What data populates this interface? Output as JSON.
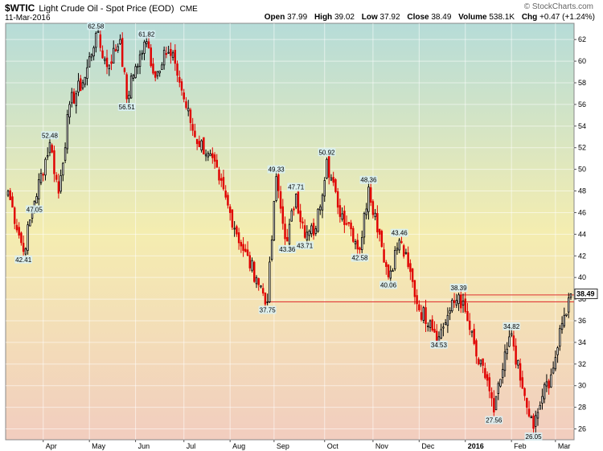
{
  "header": {
    "symbol": "$WTIC",
    "description": "Light Crude Oil - Spot Price (EOD)",
    "exchange": "CME",
    "date": "11-Mar-2016",
    "copyright": "© StockCharts.com",
    "open_label": "Open",
    "open": "37.99",
    "high_label": "High",
    "high": "39.02",
    "low_label": "Low",
    "low": "37.92",
    "close_label": "Close",
    "close": "38.49",
    "volume_label": "Volume",
    "volume": "538.1K",
    "chg_label": "Chg",
    "chg": "+0.47 (+1.24%)"
  },
  "colors": {
    "up": "#000000",
    "down": "#e00000",
    "line": "#e03030",
    "bg_top": "#b6dcd8",
    "bg_mid": "#f4edb0",
    "bg_bottom": "#f2cdbf"
  },
  "chart_data": {
    "type": "candlestick",
    "yticks": [
      26,
      28,
      30,
      32,
      34,
      36,
      38,
      40,
      42,
      44,
      46,
      48,
      50,
      52,
      54,
      56,
      58,
      60,
      62
    ],
    "ylim": [
      25,
      63.5
    ],
    "months": [
      "Apr",
      "May",
      "Jun",
      "Jul",
      "Aug",
      "Sep",
      "Oct",
      "Nov",
      "Dec",
      "2016",
      "Feb",
      "Mar"
    ],
    "month_index": [
      16,
      37,
      58,
      80,
      101,
      121,
      144,
      166,
      187,
      208,
      229,
      249
    ],
    "n_bars": 257,
    "anchors": [
      [
        0,
        48.0
      ],
      [
        7,
        42.41
      ],
      [
        12,
        47.05
      ],
      [
        19,
        52.48
      ],
      [
        23,
        47.8
      ],
      [
        28,
        56.0
      ],
      [
        35,
        58.5
      ],
      [
        40,
        62.58
      ],
      [
        45,
        59.5
      ],
      [
        51,
        62.0
      ],
      [
        54,
        56.51
      ],
      [
        58,
        59.5
      ],
      [
        63,
        61.82
      ],
      [
        67,
        58.5
      ],
      [
        71,
        61.0
      ],
      [
        76,
        59.8
      ],
      [
        80,
        56.5
      ],
      [
        85,
        53.0
      ],
      [
        91,
        51.5
      ],
      [
        96,
        49.0
      ],
      [
        101,
        46.0
      ],
      [
        107,
        42.5
      ],
      [
        113,
        40.0
      ],
      [
        118,
        37.75
      ],
      [
        122,
        49.33
      ],
      [
        125,
        45.0
      ],
      [
        127,
        43.36
      ],
      [
        131,
        47.71
      ],
      [
        135,
        43.71
      ],
      [
        140,
        44.5
      ],
      [
        145,
        50.92
      ],
      [
        150,
        46.5
      ],
      [
        155,
        45.0
      ],
      [
        160,
        42.58
      ],
      [
        164,
        48.36
      ],
      [
        169,
        44.0
      ],
      [
        173,
        40.06
      ],
      [
        178,
        43.46
      ],
      [
        182,
        41.0
      ],
      [
        187,
        37.0
      ],
      [
        192,
        36.0
      ],
      [
        196,
        34.53
      ],
      [
        200,
        36.5
      ],
      [
        205,
        38.39
      ],
      [
        209,
        36.0
      ],
      [
        214,
        32.0
      ],
      [
        218,
        30.5
      ],
      [
        221,
        27.56
      ],
      [
        225,
        31.5
      ],
      [
        229,
        34.82
      ],
      [
        233,
        30.5
      ],
      [
        236,
        28.0
      ],
      [
        239,
        26.05
      ],
      [
        243,
        29.0
      ],
      [
        247,
        31.0
      ],
      [
        250,
        33.5
      ],
      [
        253,
        36.5
      ],
      [
        256,
        38.49
      ]
    ],
    "annotations": [
      {
        "label": "62.58",
        "value": 62.58,
        "index": 40,
        "pos": "above"
      },
      {
        "label": "61.82",
        "value": 61.82,
        "index": 63,
        "pos": "above"
      },
      {
        "label": "52.48",
        "value": 52.48,
        "index": 19,
        "pos": "above"
      },
      {
        "label": "56.51",
        "value": 56.51,
        "index": 54,
        "pos": "below"
      },
      {
        "label": "47.05",
        "value": 47.05,
        "index": 12,
        "pos": "below"
      },
      {
        "label": "42.41",
        "value": 42.41,
        "index": 7,
        "pos": "below"
      },
      {
        "label": "49.33",
        "value": 49.33,
        "index": 122,
        "pos": "above"
      },
      {
        "label": "47.71",
        "value": 47.71,
        "index": 131,
        "pos": "above"
      },
      {
        "label": "43.36",
        "value": 43.36,
        "index": 127,
        "pos": "below"
      },
      {
        "label": "43.71",
        "value": 43.71,
        "index": 135,
        "pos": "below"
      },
      {
        "label": "37.75",
        "value": 37.75,
        "index": 118,
        "pos": "below"
      },
      {
        "label": "50.92",
        "value": 50.92,
        "index": 145,
        "pos": "above"
      },
      {
        "label": "48.36",
        "value": 48.36,
        "index": 164,
        "pos": "above"
      },
      {
        "label": "42.58",
        "value": 42.58,
        "index": 160,
        "pos": "below"
      },
      {
        "label": "43.46",
        "value": 43.46,
        "index": 178,
        "pos": "above"
      },
      {
        "label": "40.06",
        "value": 40.06,
        "index": 173,
        "pos": "below"
      },
      {
        "label": "38.39",
        "value": 38.39,
        "index": 205,
        "pos": "above"
      },
      {
        "label": "34.53",
        "value": 34.53,
        "index": 196,
        "pos": "below"
      },
      {
        "label": "34.82",
        "value": 34.82,
        "index": 229,
        "pos": "above"
      },
      {
        "label": "27.56",
        "value": 27.56,
        "index": 221,
        "pos": "below"
      },
      {
        "label": "26.05",
        "value": 26.05,
        "index": 239,
        "pos": "below"
      }
    ],
    "support_lines": [
      {
        "value": 37.75,
        "from_index": 118,
        "to_index": 257
      },
      {
        "value": 38.39,
        "from_index": 205,
        "to_index": 257
      }
    ],
    "last_value_label": "38.49",
    "last_value": 38.49
  }
}
